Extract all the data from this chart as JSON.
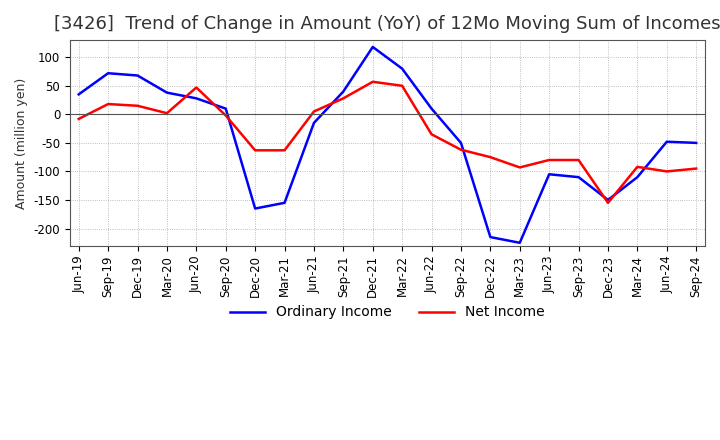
{
  "title": "[3426]  Trend of Change in Amount (YoY) of 12Mo Moving Sum of Incomes",
  "ylabel": "Amount (million yen)",
  "x_labels": [
    "Jun-19",
    "Sep-19",
    "Dec-19",
    "Mar-20",
    "Jun-20",
    "Sep-20",
    "Dec-20",
    "Mar-21",
    "Jun-21",
    "Sep-21",
    "Dec-21",
    "Mar-22",
    "Jun-22",
    "Sep-22",
    "Dec-22",
    "Mar-23",
    "Jun-23",
    "Sep-23",
    "Dec-23",
    "Mar-24",
    "Jun-24",
    "Sep-24"
  ],
  "ordinary_income": [
    35,
    72,
    68,
    38,
    28,
    10,
    -165,
    -155,
    -15,
    40,
    118,
    80,
    10,
    -50,
    -215,
    -225,
    -105,
    -110,
    -150,
    -110,
    -48,
    -50
  ],
  "net_income": [
    -8,
    18,
    15,
    2,
    47,
    -2,
    -63,
    -63,
    5,
    28,
    57,
    50,
    -35,
    -62,
    -75,
    -93,
    -80,
    -80,
    -155,
    -92,
    -100,
    -95
  ],
  "ordinary_color": "#0000ff",
  "net_color": "#ff0000",
  "ylim": [
    -230,
    130
  ],
  "yticks": [
    100,
    50,
    0,
    -50,
    -100,
    -150,
    -200
  ],
  "bg_color": "#ffffff",
  "grid_color": "#aaaaaa",
  "legend_labels": [
    "Ordinary Income",
    "Net Income"
  ],
  "title_fontsize": 13,
  "ylabel_fontsize": 9,
  "tick_fontsize": 8.5
}
